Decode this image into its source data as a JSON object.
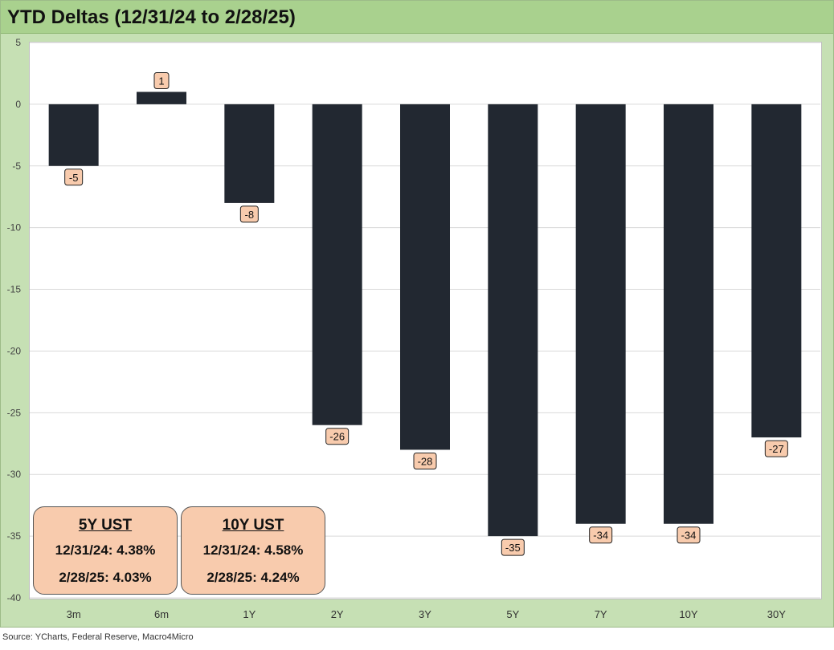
{
  "title": "YTD Deltas (12/31/24 to 2/28/25)",
  "source": "Source: YCharts, Federal Reserve, Macro4Micro",
  "colors": {
    "bar": "#222831",
    "label_fill": "#f8cbad",
    "frame": "#c6e0b4",
    "title_band": "#a9d18e"
  },
  "chart_data": {
    "type": "bar",
    "title": "YTD Deltas (12/31/24 to 2/28/25)",
    "categories": [
      "3m",
      "6m",
      "1Y",
      "2Y",
      "3Y",
      "5Y",
      "7Y",
      "10Y",
      "30Y"
    ],
    "values": [
      -5,
      1,
      -8,
      -26,
      -28,
      -35,
      -34,
      -34,
      -27
    ],
    "data_labels": [
      "-5",
      "1",
      "-8",
      "-26",
      "-28",
      "-35",
      "-34",
      "-34",
      "-27"
    ],
    "ylim": [
      -40,
      5
    ],
    "yticks": [
      5,
      0,
      -5,
      -10,
      -15,
      -20,
      -25,
      -30,
      -35,
      -40
    ],
    "grid": true,
    "legend": "none"
  },
  "callouts": [
    {
      "title": "5Y UST",
      "line1": "12/31/24: 4.38%",
      "line2": "2/28/25: 4.03%"
    },
    {
      "title": "10Y UST",
      "line1": "12/31/24: 4.58%",
      "line2": "2/28/25: 4.24%"
    }
  ]
}
